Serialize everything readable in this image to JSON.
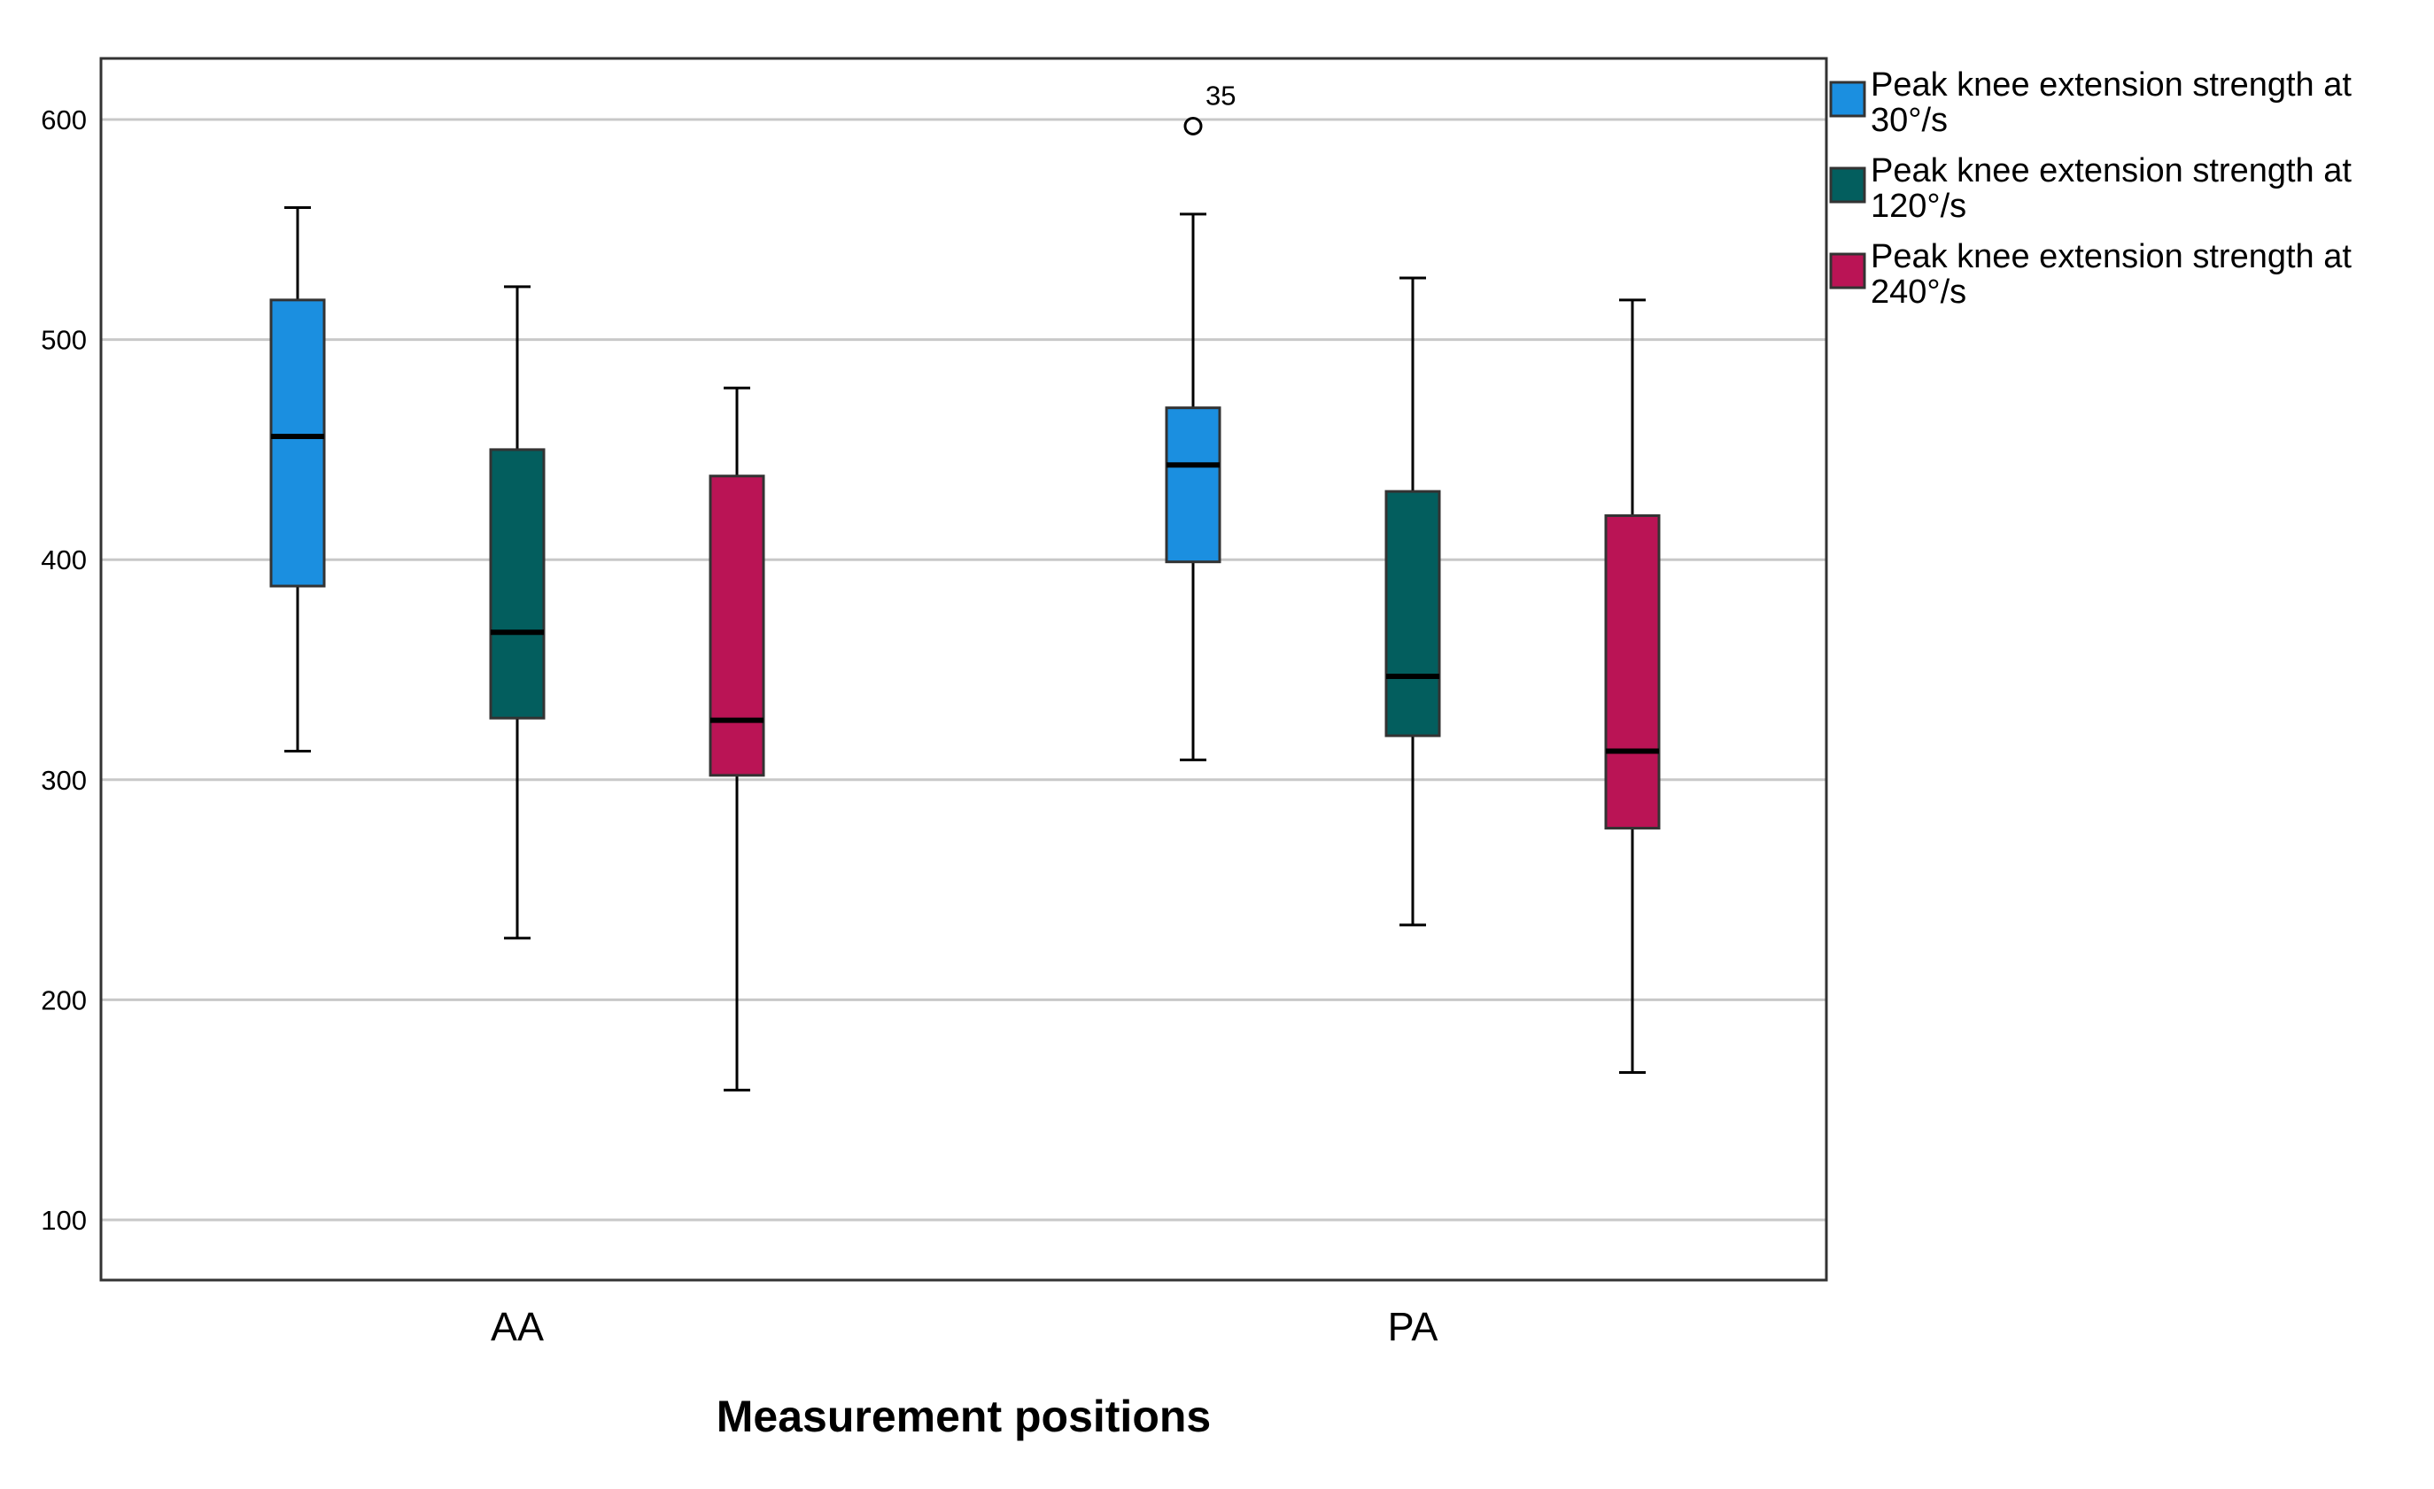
{
  "chart_data": {
    "type": "boxplot",
    "title": "",
    "xlabel": "Measurement positions",
    "ylabel": "",
    "ylim": [
      73,
      628
    ],
    "yticks": [
      100,
      200,
      300,
      400,
      500,
      600
    ],
    "grid": "horizontal",
    "legend_position": "right",
    "categories": [
      "AA",
      "PA"
    ],
    "series": [
      {
        "name": "Peak knee extension strength at 30°/s",
        "legend_lines": [
          "Peak knee extension strength at",
          "30°/s"
        ],
        "color": "#1B8FE0",
        "boxes": [
          {
            "category": "AA",
            "whisker_low": 313,
            "q1": 388,
            "median": 456,
            "q3": 518,
            "whisker_high": 560,
            "outliers": []
          },
          {
            "category": "PA",
            "whisker_low": 309,
            "q1": 399,
            "median": 443,
            "q3": 469,
            "whisker_high": 557,
            "outliers": [
              {
                "value": 597,
                "label": "35"
              }
            ]
          }
        ]
      },
      {
        "name": "Peak knee extension strength at 120°/s",
        "legend_lines": [
          "Peak knee extension strength at",
          "120°/s"
        ],
        "color": "#035E5E",
        "boxes": [
          {
            "category": "AA",
            "whisker_low": 228,
            "q1": 328,
            "median": 367,
            "q3": 450,
            "whisker_high": 524,
            "outliers": []
          },
          {
            "category": "PA",
            "whisker_low": 234,
            "q1": 320,
            "median": 347,
            "q3": 431,
            "whisker_high": 528,
            "outliers": []
          }
        ]
      },
      {
        "name": "Peak knee extension strength at 240°/s",
        "legend_lines": [
          "Peak knee extension strength at",
          "240°/s"
        ],
        "color": "#BA1455",
        "boxes": [
          {
            "category": "AA",
            "whisker_low": 159,
            "q1": 302,
            "median": 327,
            "q3": 438,
            "whisker_high": 478,
            "outliers": []
          },
          {
            "category": "PA",
            "whisker_low": 167,
            "q1": 278,
            "median": 313,
            "q3": 420,
            "whisker_high": 518,
            "outliers": []
          }
        ]
      }
    ]
  }
}
